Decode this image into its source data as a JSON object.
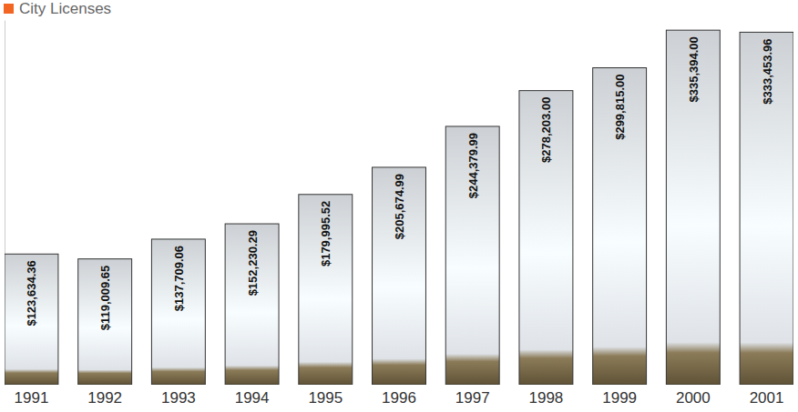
{
  "chart_data": {
    "type": "bar",
    "title": "City Licenses",
    "categories": [
      "1991",
      "1992",
      "1993",
      "1994",
      "1995",
      "1996",
      "1997",
      "1998",
      "1999",
      "2000",
      "2001"
    ],
    "values": [
      123634.36,
      119009.65,
      137709.06,
      152230.29,
      179995.52,
      205674.99,
      244379.99,
      278203.0,
      299815.0,
      335394.0,
      333453.96
    ],
    "value_labels": [
      "$123,634.36",
      "$119,009.65",
      "$137,709.06",
      "$152,230.29",
      "$179,995.52",
      "$205,674.99",
      "$244,379.99",
      "$278,203.00",
      "$299,815.00",
      "$335,394.00",
      "$333,453.96"
    ],
    "color": "#dfe3e8",
    "ylim": [
      0,
      345000
    ],
    "data_labels": true,
    "tick_labels": "x"
  }
}
